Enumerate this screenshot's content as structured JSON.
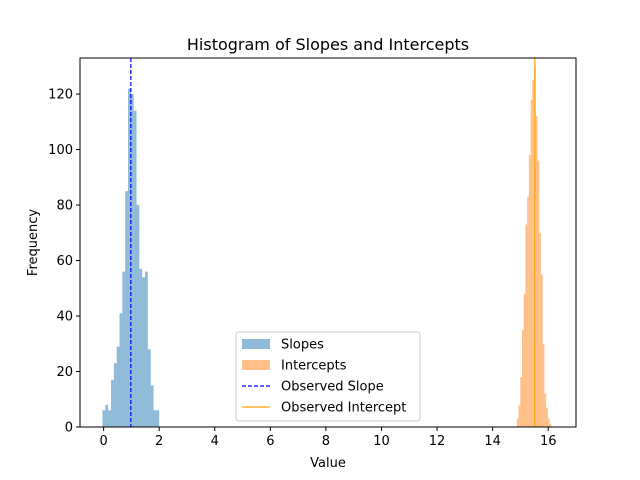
{
  "chart_data": {
    "type": "histogram",
    "title": "Histogram of Slopes and Intercepts",
    "xlabel": "Value",
    "ylabel": "Frequency",
    "xlim": [
      -0.85,
      17.0
    ],
    "ylim": [
      0,
      133
    ],
    "xticks": [
      0,
      2,
      4,
      6,
      8,
      10,
      12,
      14,
      16
    ],
    "yticks": [
      0,
      20,
      40,
      60,
      80,
      100,
      120
    ],
    "grid": false,
    "legend_position": "lower-center",
    "series": [
      {
        "name": "Slopes",
        "color": "#1f77b4",
        "alpha": 0.5,
        "bin_start": -0.04,
        "bin_width": 0.102,
        "counts": [
          6,
          8,
          6,
          17,
          23,
          29,
          41,
          56,
          85,
          122,
          120,
          114,
          80,
          57,
          54,
          56,
          28,
          15,
          6,
          6,
          0
        ]
      },
      {
        "name": "Intercepts",
        "color": "#ff7f0e",
        "alpha": 0.5,
        "bin_start": 14.87,
        "bin_width": 0.062,
        "counts": [
          3,
          8,
          18,
          35,
          48,
          73,
          83,
          98,
          118,
          125,
          130,
          112,
          96,
          70,
          55,
          30,
          12,
          7,
          3,
          1
        ]
      }
    ],
    "reference_lines": [
      {
        "name": "Observed Slope",
        "x": 0.98,
        "color": "#0000ff",
        "style": "dashed"
      },
      {
        "name": "Observed Intercept",
        "x": 15.52,
        "color": "#ffa500",
        "style": "solid"
      }
    ]
  }
}
